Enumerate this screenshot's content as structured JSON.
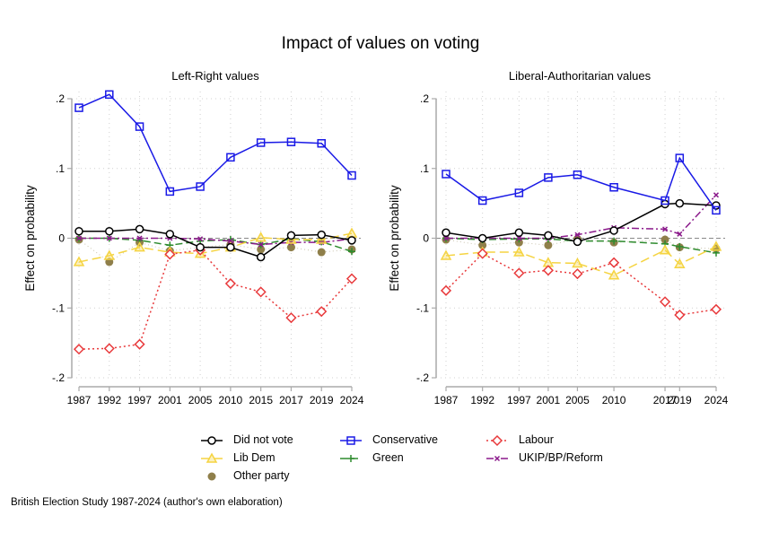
{
  "title": "Impact of values on voting",
  "footer": "British Election Study 1987-2024 (author's own elaboration)",
  "legend": [
    {
      "key": "dnv",
      "label": "Did not vote"
    },
    {
      "key": "con",
      "label": "Conservative"
    },
    {
      "key": "lab",
      "label": "Labour"
    },
    {
      "key": "ld",
      "label": "Lib Dem"
    },
    {
      "key": "grn",
      "label": "Green"
    },
    {
      "key": "ukip",
      "label": "UKIP/BP/Reform"
    },
    {
      "key": "oth",
      "label": "Other party"
    }
  ],
  "series_styles": {
    "dnv": {
      "color": "#000000",
      "marker": "circle-open",
      "dash": "solid"
    },
    "con": {
      "color": "#1a1ae6",
      "marker": "square-open",
      "dash": "solid"
    },
    "lab": {
      "color": "#e8393b",
      "marker": "diamond-open",
      "dash": "dot"
    },
    "ld": {
      "color": "#f5d442",
      "marker": "triangle",
      "dash": "longdash"
    },
    "grn": {
      "color": "#2e8b2e",
      "marker": "plus",
      "dash": "dash"
    },
    "ukip": {
      "color": "#8b1a8b",
      "marker": "x",
      "dash": "dashdot"
    },
    "oth": {
      "color": "#8f7f4a",
      "marker": "circle-filled",
      "dash": "faint-dot"
    }
  },
  "chart_data": [
    {
      "type": "line",
      "title": "Left-Right values",
      "xlabel": "",
      "ylabel": "Effect on probability",
      "ylim": [
        -0.2,
        0.2
      ],
      "yticks": [
        ".2",
        ".1",
        "0",
        "-.1",
        "-.2"
      ],
      "ytick_values": [
        0.2,
        0.1,
        0,
        -0.1,
        -0.2
      ],
      "x": [
        1987,
        1992,
        1997,
        2001,
        2005,
        2010,
        2015,
        2017,
        2019,
        2024
      ],
      "x_categorical": true,
      "grid": true,
      "reference_line": 0,
      "series": [
        {
          "key": "dnv",
          "name": "Did not vote",
          "values": [
            0.01,
            0.01,
            0.013,
            0.006,
            -0.013,
            -0.013,
            -0.027,
            0.004,
            0.005,
            -0.003
          ]
        },
        {
          "key": "con",
          "name": "Conservative",
          "values": [
            0.187,
            0.206,
            0.16,
            0.067,
            0.074,
            0.116,
            0.137,
            0.138,
            0.136,
            0.09
          ]
        },
        {
          "key": "lab",
          "name": "Labour",
          "values": [
            -0.159,
            -0.158,
            -0.152,
            -0.023,
            -0.017,
            -0.065,
            -0.077,
            -0.114,
            -0.105,
            -0.058
          ]
        },
        {
          "key": "ld",
          "name": "Lib Dem",
          "values": [
            -0.034,
            -0.025,
            -0.013,
            -0.02,
            -0.022,
            -0.013,
            0.001,
            -0.002,
            -0.002,
            0.007
          ]
        },
        {
          "key": "grn",
          "name": "Green",
          "values": [
            0.0,
            0.0,
            -0.003,
            -0.01,
            -0.004,
            -0.002,
            -0.009,
            -0.001,
            -0.005,
            -0.019
          ]
        },
        {
          "key": "ukip",
          "name": "UKIP/BP/Reform",
          "values": [
            0.0,
            0.0,
            0.0,
            0.0,
            -0.001,
            -0.004,
            -0.009,
            -0.006,
            -0.006,
            -0.001
          ]
        },
        {
          "key": "oth",
          "name": "Other party",
          "values": [
            -0.002,
            -0.034,
            -0.006,
            -0.018,
            -0.013,
            -0.009,
            -0.016,
            -0.013,
            -0.02,
            -0.016
          ]
        }
      ]
    },
    {
      "type": "line",
      "title": "Liberal-Authoritarian values",
      "xlabel": "",
      "ylabel": "Effect on probability",
      "ylim": [
        -0.2,
        0.2
      ],
      "yticks": [
        ".2",
        ".1",
        "0",
        "-.1",
        "-.2"
      ],
      "ytick_values": [
        0.2,
        0.1,
        0,
        -0.1,
        -0.2
      ],
      "x": [
        1987,
        1992,
        1997,
        2001,
        2005,
        2010,
        2017,
        2019,
        2024
      ],
      "x_categorical": false,
      "grid": true,
      "reference_line": 0,
      "series": [
        {
          "key": "dnv",
          "name": "Did not vote",
          "values": [
            0.008,
            0.0,
            0.008,
            0.004,
            -0.005,
            0.011,
            0.049,
            0.05,
            0.047
          ]
        },
        {
          "key": "con",
          "name": "Conservative",
          "values": [
            0.092,
            0.054,
            0.065,
            0.087,
            0.091,
            0.073,
            0.054,
            0.115,
            0.04
          ]
        },
        {
          "key": "lab",
          "name": "Labour",
          "values": [
            -0.075,
            -0.022,
            -0.05,
            -0.046,
            -0.051,
            -0.035,
            -0.091,
            -0.11,
            -0.102
          ]
        },
        {
          "key": "ld",
          "name": "Lib Dem",
          "values": [
            -0.025,
            -0.02,
            -0.02,
            -0.035,
            -0.036,
            -0.053,
            -0.017,
            -0.037,
            -0.012
          ]
        },
        {
          "key": "grn",
          "name": "Green",
          "values": [
            0.0,
            -0.002,
            -0.001,
            -0.001,
            -0.004,
            -0.004,
            -0.008,
            -0.012,
            -0.021
          ]
        },
        {
          "key": "ukip",
          "name": "UKIP/BP/Reform",
          "values": [
            0.0,
            0.0,
            0.0,
            0.0,
            0.005,
            0.015,
            0.013,
            0.006,
            0.062
          ]
        },
        {
          "key": "oth",
          "name": "Other party",
          "values": [
            -0.002,
            -0.01,
            -0.006,
            -0.01,
            -0.001,
            -0.006,
            -0.002,
            -0.013,
            -0.015
          ]
        }
      ]
    }
  ]
}
